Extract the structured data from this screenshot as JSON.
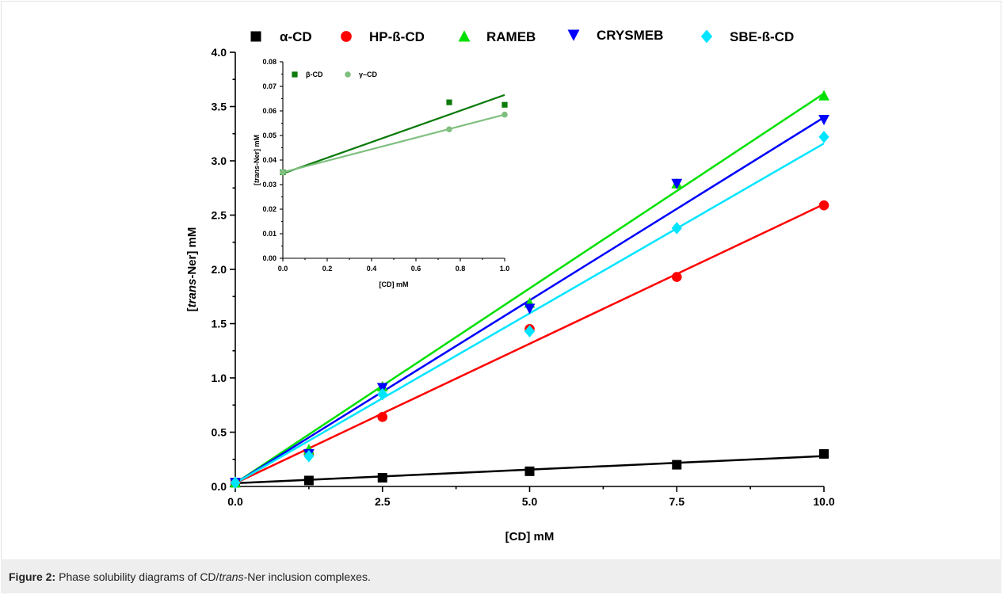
{
  "figure": {
    "label": "Figure 2:",
    "caption_pre": "Phase solubility diagrams of CD/",
    "caption_italic": "trans",
    "caption_post": "-Ner inclusion complexes."
  },
  "chart_data": [
    {
      "type": "scatter",
      "role": "main",
      "xlabel": "[CD] mM",
      "ylabel_italic": "trans",
      "ylabel_pre": "[",
      "ylabel_post": "-Ner] mM",
      "xlim": [
        0,
        10
      ],
      "ylim": [
        0,
        4
      ],
      "xticks": [
        0,
        2.5,
        5,
        7.5,
        10
      ],
      "xtick_labels": [
        "0.0",
        "2.5",
        "5.0",
        "7.5",
        "10.0"
      ],
      "yticks": [
        0,
        0.5,
        1,
        1.5,
        2,
        2.5,
        3,
        3.5,
        4
      ],
      "ytick_labels": [
        "0.0",
        "0.5",
        "1.0",
        "1.5",
        "2.0",
        "2.5",
        "3.0",
        "3.5",
        "4.0"
      ],
      "legend_position": "top",
      "series": [
        {
          "name": "α-CD",
          "color": "#000000",
          "marker": "square",
          "x": [
            0,
            1.25,
            2.5,
            5,
            7.5,
            10
          ],
          "y": [
            0.035,
            0.055,
            0.08,
            0.14,
            0.2,
            0.3
          ],
          "fit": [
            [
              0,
              0.03
            ],
            [
              10,
              0.28
            ]
          ]
        },
        {
          "name": "HP-ß-CD",
          "color": "#ff0000",
          "marker": "circle",
          "x": [
            0,
            1.25,
            2.5,
            5,
            7.5,
            10
          ],
          "y": [
            0.035,
            0.3,
            0.64,
            1.45,
            1.93,
            2.59
          ],
          "fit": [
            [
              0,
              0.03
            ],
            [
              10,
              2.6
            ]
          ]
        },
        {
          "name": "RAMEB",
          "color": "#00e000",
          "marker": "triangle-up",
          "x": [
            0,
            1.25,
            2.5,
            5,
            7.5,
            10
          ],
          "y": [
            0.035,
            0.34,
            0.92,
            1.69,
            2.79,
            3.6
          ],
          "fit": [
            [
              0,
              0.03
            ],
            [
              10,
              3.62
            ]
          ]
        },
        {
          "name": "CRYSMEB",
          "color": "#0000ff",
          "marker": "triangle-down",
          "x": [
            0,
            1.25,
            2.5,
            5,
            7.5,
            10
          ],
          "y": [
            0.035,
            0.3,
            0.91,
            1.64,
            2.79,
            3.38
          ],
          "fit": [
            [
              0,
              0.03
            ],
            [
              10,
              3.4
            ]
          ]
        },
        {
          "name": "SBE-ß-CD",
          "color": "#00e5ff",
          "marker": "diamond",
          "x": [
            0,
            1.25,
            2.5,
            5,
            7.5,
            10
          ],
          "y": [
            0.035,
            0.28,
            0.85,
            1.43,
            2.38,
            3.22
          ],
          "fit": [
            [
              0,
              0.03
            ],
            [
              10,
              3.16
            ]
          ]
        }
      ]
    },
    {
      "type": "scatter",
      "role": "inset",
      "xlabel": "[CD] mM",
      "ylabel_italic": "trans",
      "ylabel_pre": "[",
      "ylabel_post": "-Ner] mM",
      "xlim": [
        0,
        1
      ],
      "ylim": [
        0,
        0.08
      ],
      "xticks": [
        0,
        0.2,
        0.4,
        0.6,
        0.8,
        1.0
      ],
      "xtick_labels": [
        "0.0",
        "0.2",
        "0.4",
        "0.6",
        "0.8",
        "1.0"
      ],
      "yticks": [
        0,
        0.01,
        0.02,
        0.03,
        0.04,
        0.05,
        0.06,
        0.07,
        0.08
      ],
      "ytick_labels": [
        "0.00",
        "0.01",
        "0.02",
        "0.03",
        "0.04",
        "0.05",
        "0.06",
        "0.07",
        "0.08"
      ],
      "legend_position": "top-left",
      "series": [
        {
          "name": "β-CD",
          "color": "#0a7a0a",
          "marker": "square",
          "x": [
            0,
            0.75,
            1.0
          ],
          "y": [
            0.035,
            0.0635,
            0.0625
          ],
          "fit": [
            [
              0,
              0.0345
            ],
            [
              1,
              0.0665
            ]
          ]
        },
        {
          "name": "γ–CD",
          "color": "#7fbf7f",
          "marker": "circle",
          "x": [
            0,
            0.75,
            1.0
          ],
          "y": [
            0.035,
            0.0525,
            0.0585
          ],
          "fit": [
            [
              0,
              0.035
            ],
            [
              1,
              0.0585
            ]
          ]
        }
      ]
    }
  ]
}
